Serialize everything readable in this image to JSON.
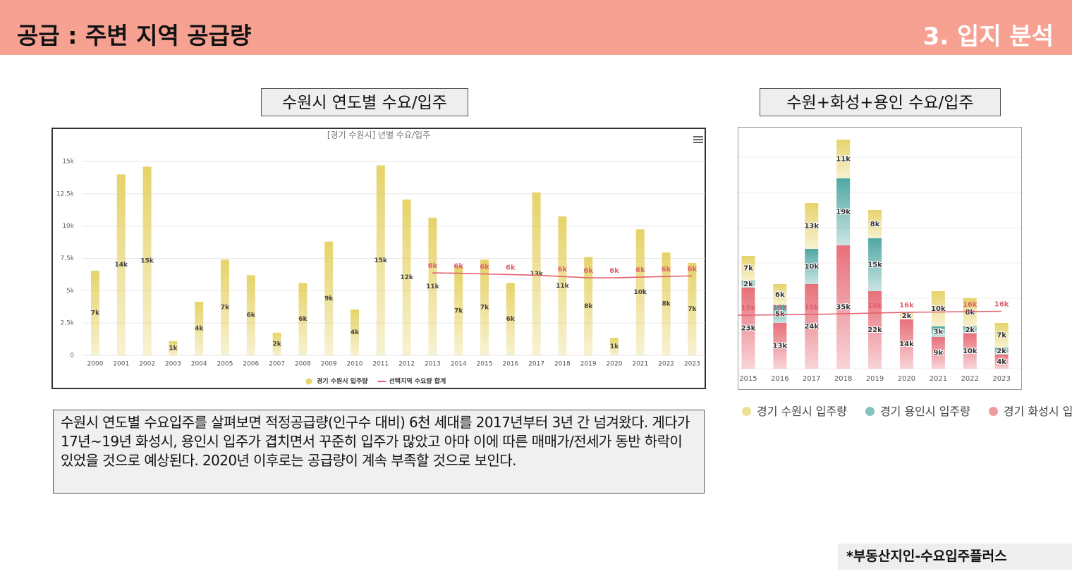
{
  "header": {
    "title": "공급 : 주변 지역 공급량",
    "section": "3. 입지 분석"
  },
  "captions": [
    "수원시 연도별 수요/입주",
    "수원+화성+용인 수요/입주"
  ],
  "chart_data": [
    {
      "type": "bar",
      "title": "[경기 수원시] 년별 수요/입주",
      "categories": [
        "2000",
        "2001",
        "2002",
        "2003",
        "2004",
        "2005",
        "2006",
        "2007",
        "2008",
        "2009",
        "2010",
        "2011",
        "2012",
        "2013",
        "2014",
        "2015",
        "2016",
        "2017",
        "2018",
        "2019",
        "2020",
        "2021",
        "2022",
        "2023"
      ],
      "series": [
        {
          "name": "경기 수원시 입주량",
          "color": "#e6d36a",
          "values": [
            6550,
            14000,
            14600,
            1100,
            4150,
            7400,
            6200,
            1750,
            5600,
            8800,
            3550,
            14700,
            12050,
            10650,
            6900,
            7400,
            5600,
            12600,
            10750,
            7600,
            1350,
            9750,
            7950,
            7150
          ],
          "value_labels": [
            "7k",
            "14k",
            "15k",
            "1k",
            "4k",
            "7k",
            "6k",
            "2k",
            "6k",
            "9k",
            "4k",
            "15k",
            "12k",
            "11k",
            "7k",
            "7k",
            "6k",
            "13k",
            "11k",
            "8k",
            "1k",
            "10k",
            "8k",
            "7k"
          ]
        },
        {
          "name": "선택지역 수요량 합계",
          "type": "line",
          "color": "#e0606e",
          "values": [
            null,
            null,
            null,
            null,
            null,
            null,
            null,
            null,
            null,
            null,
            null,
            null,
            null,
            6380,
            6350,
            6300,
            6250,
            6200,
            6100,
            6000,
            6000,
            6050,
            6100,
            6150
          ],
          "value_labels": [
            null,
            null,
            null,
            null,
            null,
            null,
            null,
            null,
            null,
            null,
            null,
            null,
            null,
            "6k",
            "6k",
            "6k",
            "6k",
            null,
            "6k",
            "6k",
            "6k",
            "6k",
            "6k",
            "6k"
          ]
        }
      ],
      "ylim": [
        0,
        15000
      ],
      "yticks": [
        0,
        {
          "value": 2500,
          "label": "2.5k"
        },
        {
          "value": 5000,
          "label": "5k"
        },
        {
          "value": 7500,
          "label": "7.5k"
        },
        {
          "value": 10000,
          "label": "10k"
        },
        {
          "value": 12500,
          "label": "12.5k"
        },
        {
          "value": 15000,
          "label": "15k"
        }
      ],
      "grid": true,
      "legend": "bottom"
    },
    {
      "type": "stacked_bar",
      "categories": [
        "2015",
        "2016",
        "2017",
        "2018",
        "2019",
        "2020",
        "2021",
        "2022",
        "2023"
      ],
      "series": [
        {
          "name": "경기 수원시 입주량",
          "color": "#e6d36a",
          "values": [
            7000,
            6000,
            13000,
            11000,
            8000,
            2000,
            10000,
            8000,
            7000
          ],
          "value_labels": [
            "7k",
            "6k",
            "13k",
            "11k",
            "8k",
            "2k",
            "10k",
            "8k",
            "7k"
          ]
        },
        {
          "name": "경기 용인시 입주량",
          "color": "#4fa8a2",
          "values": [
            2000,
            5000,
            10000,
            19000,
            15000,
            null,
            3000,
            2000,
            2000
          ],
          "value_labels": [
            "2k",
            "5k",
            "10k",
            "19k",
            "15k",
            null,
            "3k",
            "2k",
            "2k"
          ]
        },
        {
          "name": "경기 화성시 입주량",
          "color": "#e8707a",
          "values": [
            23000,
            13000,
            24000,
            35000,
            22000,
            14000,
            9000,
            10000,
            4000
          ],
          "value_labels": [
            "23k",
            "13k",
            "24k",
            "35k",
            "22k",
            "14k",
            "9k",
            "10k",
            "4k"
          ]
        },
        {
          "type": "line",
          "color": "#e0606e",
          "values": [
            15200,
            15300,
            15400,
            15600,
            15800,
            16000,
            16100,
            16200,
            16300
          ],
          "value_labels": [
            "15k",
            "15k",
            "15k",
            null,
            "16k",
            "16k",
            null,
            "16k",
            "16k"
          ]
        }
      ],
      "ylim": [
        0,
        65000
      ],
      "grid": true,
      "legend": "bottom"
    }
  ],
  "paragraph": "수원시 연도별 수요입주를 살펴보면 적정공급량(인구수 대비) 6천 세대를 2017년부터 3년 간 넘겨왔다. 게다가 17년~19년 화성시, 용인시 입주가 겹치면서 꾸준히 입주가 많았고 아마 이에 따른 매매가/전세가 동반 하락이 있었을 것으로 예상된다. 2020년 이후로는 공급량이 계속 부족할 것으로 보인다.",
  "source": "*부동산지인-수요입주플러스"
}
